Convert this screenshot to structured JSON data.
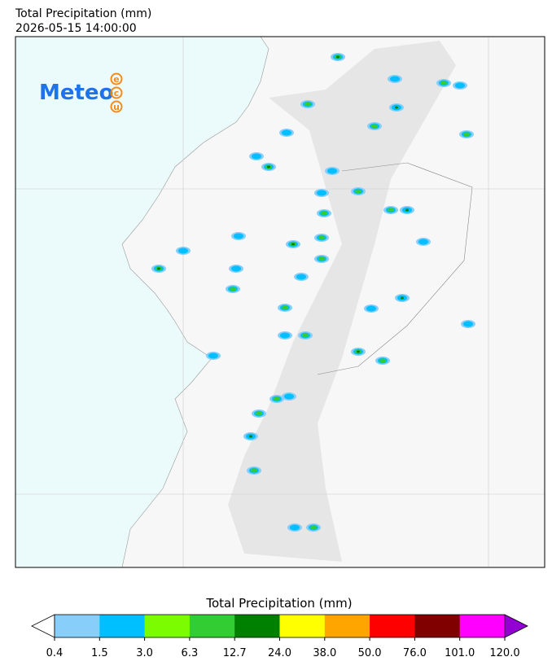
{
  "header": {
    "title": "Total Precipitation (mm)",
    "timestamp": "2026-05-15 14:00:00"
  },
  "logo": {
    "text": "Meteo",
    "letters": [
      "e",
      "c",
      "u"
    ]
  },
  "colorbar": {
    "label": "Total Precipitation (mm)",
    "ticks": [
      {
        "value": 0.4,
        "label": "0.4"
      },
      {
        "value": 1.5,
        "label": "1.5"
      },
      {
        "value": 3,
        "label": "3.0"
      },
      {
        "value": 6.3,
        "label": "6.3"
      },
      {
        "value": 12.7,
        "label": "12.7"
      },
      {
        "value": 24,
        "label": "24.0"
      },
      {
        "value": 38,
        "label": "38.0"
      },
      {
        "value": 50,
        "label": "50.0"
      },
      {
        "value": 76,
        "label": "76.0"
      },
      {
        "value": 101,
        "label": "101.0"
      },
      {
        "value": 120,
        "label": "120.0"
      }
    ],
    "colors": [
      "#87cefa",
      "#00bfff",
      "#7cfc00",
      "#32cd32",
      "#008000",
      "#ffff00",
      "#ffa500",
      "#ff0000",
      "#800000",
      "#ff00ff"
    ],
    "under_color": "#ffffff",
    "over_color": "#9400d3"
  }
}
